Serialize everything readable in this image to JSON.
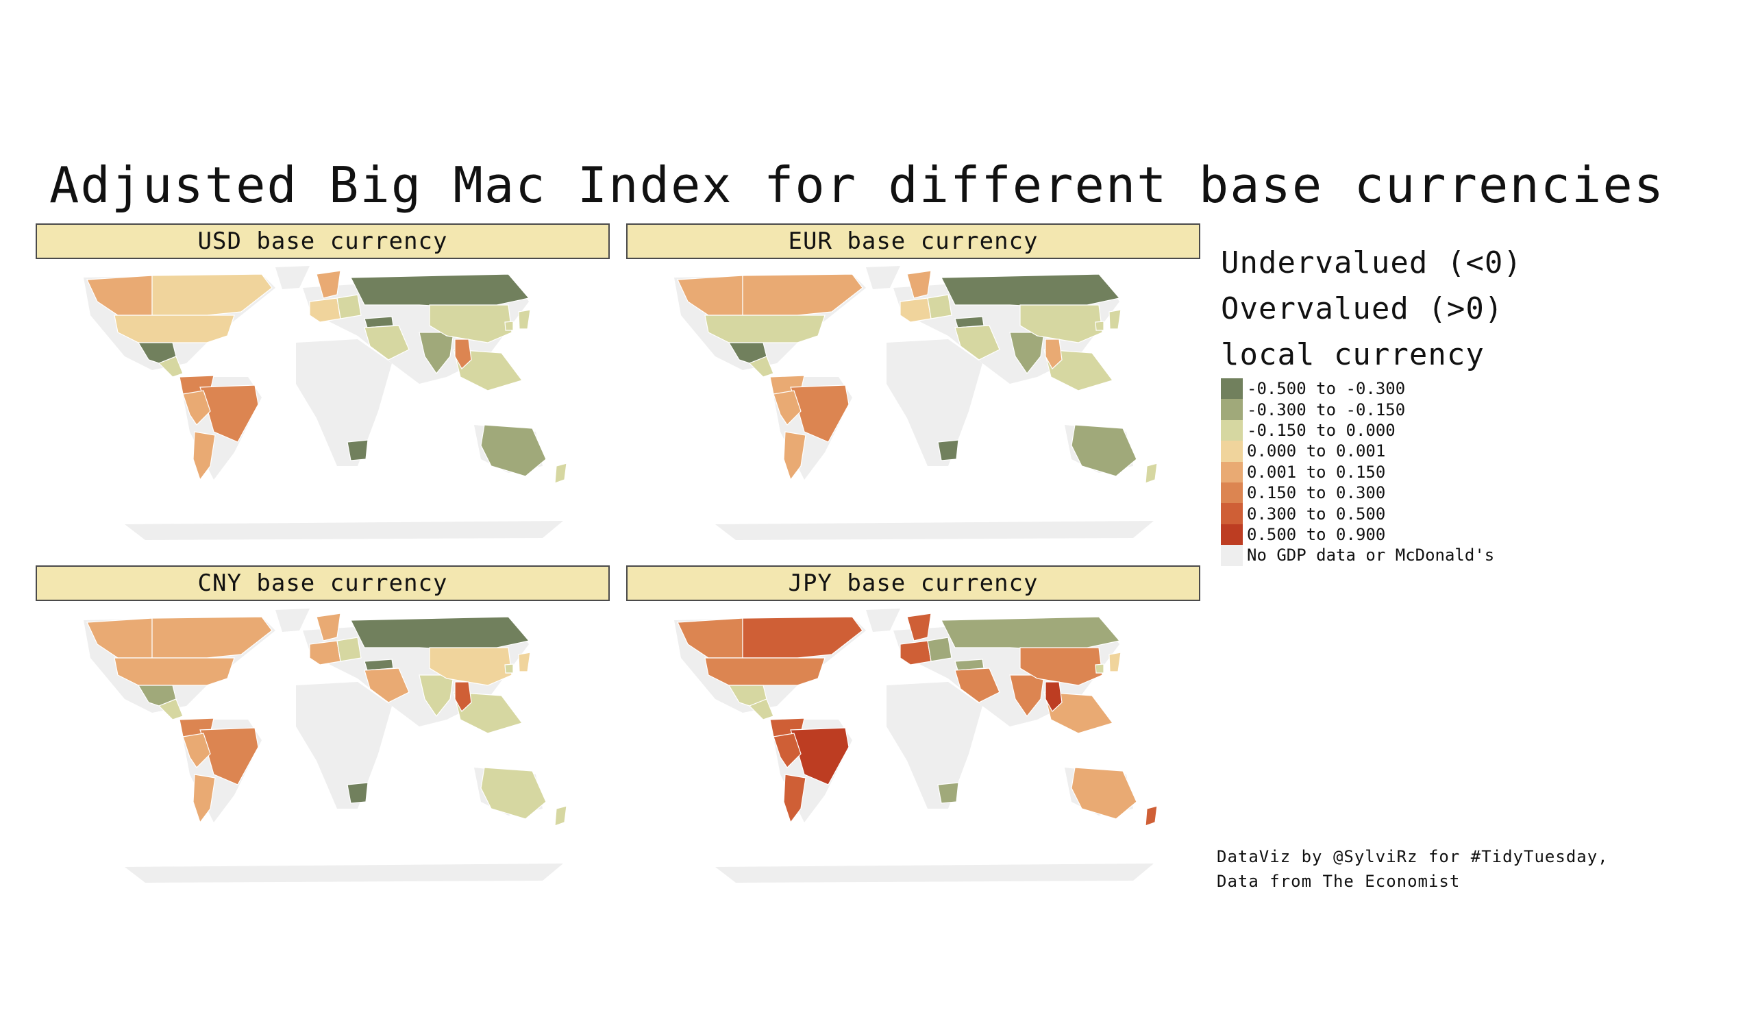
{
  "title": "Adjusted Big Mac Index for different base currencies",
  "legend": {
    "title_lines": [
      "Undervalued (<0)",
      "Overvalued (>0)",
      "local currency"
    ],
    "items": [
      {
        "label": "-0.500 to -0.300",
        "color": "#71805d"
      },
      {
        "label": "-0.300 to -0.150",
        "color": "#a0a97a"
      },
      {
        "label": "-0.150 to 0.000",
        "color": "#d6d7a1"
      },
      {
        "label": "0.000 to 0.001",
        "color": "#f0d49c"
      },
      {
        "label": "0.001 to 0.150",
        "color": "#e9aa73"
      },
      {
        "label": "0.150 to 0.300",
        "color": "#dc8551"
      },
      {
        "label": "0.300 to 0.500",
        "color": "#cf5f36"
      },
      {
        "label": "0.500 to 0.900",
        "color": "#bd3d22"
      },
      {
        "label": "No GDP data or McDonald's",
        "color": "#eeeeee"
      }
    ]
  },
  "caption": [
    "DataViz by @SylviRz for #TidyTuesday,",
    "Data from The Economist"
  ],
  "panels": [
    {
      "label": "USD base currency",
      "classes": {
        "na": 4,
        "ca": 3,
        "us": 3,
        "mx": 0,
        "ca_am": 2,
        "sa_n": 5,
        "br": 5,
        "sa_w": 4,
        "ar": 4,
        "scan": 4,
        "we": 3,
        "ce": 2,
        "ru": 0,
        "tr": 0,
        "me": 2,
        "in": 1,
        "cn": 2,
        "jp": 2,
        "kr": 2,
        "sea": 2,
        "th": 5,
        "au": 1,
        "nz": 2,
        "za": 0
      }
    },
    {
      "label": "EUR base currency",
      "classes": {
        "na": 4,
        "ca": 4,
        "us": 2,
        "mx": 0,
        "ca_am": 2,
        "sa_n": 4,
        "br": 5,
        "sa_w": 4,
        "ar": 4,
        "scan": 4,
        "we": 3,
        "ce": 2,
        "ru": 0,
        "tr": 0,
        "me": 2,
        "in": 1,
        "cn": 2,
        "jp": 2,
        "kr": 2,
        "sea": 2,
        "th": 4,
        "au": 1,
        "nz": 2,
        "za": 0
      }
    },
    {
      "label": "CNY base currency",
      "classes": {
        "na": 4,
        "ca": 4,
        "us": 4,
        "mx": 1,
        "ca_am": 2,
        "sa_n": 5,
        "br": 5,
        "sa_w": 4,
        "ar": 4,
        "scan": 4,
        "we": 4,
        "ce": 2,
        "ru": 0,
        "tr": 0,
        "me": 4,
        "in": 2,
        "cn": 3,
        "jp": 3,
        "kr": 2,
        "sea": 2,
        "th": 6,
        "au": 2,
        "nz": 2,
        "za": 0
      }
    },
    {
      "label": "JPY base currency",
      "classes": {
        "na": 5,
        "ca": 6,
        "us": 5,
        "mx": 2,
        "ca_am": 2,
        "sa_n": 6,
        "br": 7,
        "sa_w": 6,
        "ar": 6,
        "scan": 6,
        "we": 6,
        "ce": 1,
        "ru": 1,
        "tr": 1,
        "me": 5,
        "in": 5,
        "cn": 5,
        "jp": 3,
        "kr": 2,
        "sea": 4,
        "th": 7,
        "au": 4,
        "nz": 6,
        "za": 1
      }
    }
  ]
}
